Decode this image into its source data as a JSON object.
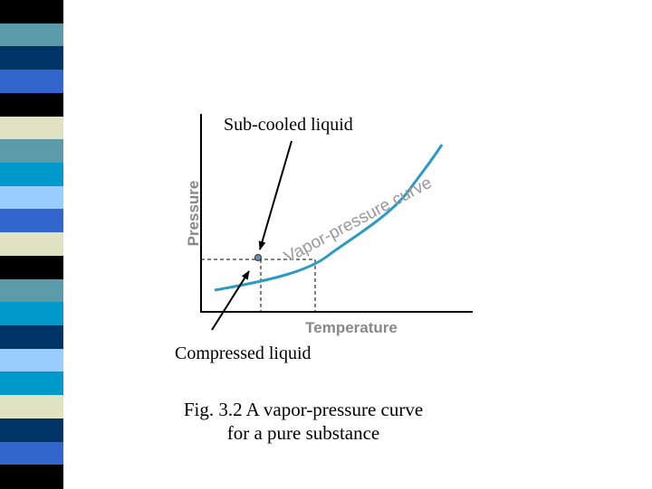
{
  "colors": {
    "curve": "#2a9bc2",
    "axis": "#000000",
    "point": "#6b8fb0",
    "stripe_palette": {
      "navy": "#003366",
      "teal": "#5b9aa8",
      "blue": "#3366cc",
      "cyan": "#0099cc",
      "sky": "#99ccff",
      "cream": "#dfe3c2",
      "black": "#000000"
    },
    "stripe_sequence": [
      "black",
      "teal",
      "navy",
      "blue",
      "black",
      "cream",
      "teal",
      "cyan",
      "sky",
      "blue",
      "cream",
      "black",
      "teal",
      "cyan",
      "navy",
      "sky",
      "cyan",
      "cream",
      "navy",
      "blue",
      "black"
    ]
  },
  "annotations": {
    "top_label": "Sub-cooled liquid",
    "bottom_label": "Compressed liquid"
  },
  "axes": {
    "x_label": "Temperature",
    "y_label": "Pressure"
  },
  "curve_label": "Vapor-pressure curve",
  "caption": {
    "line1": "Fig. 3.2 A vapor-pressure curve",
    "line2": "for a pure substance"
  }
}
